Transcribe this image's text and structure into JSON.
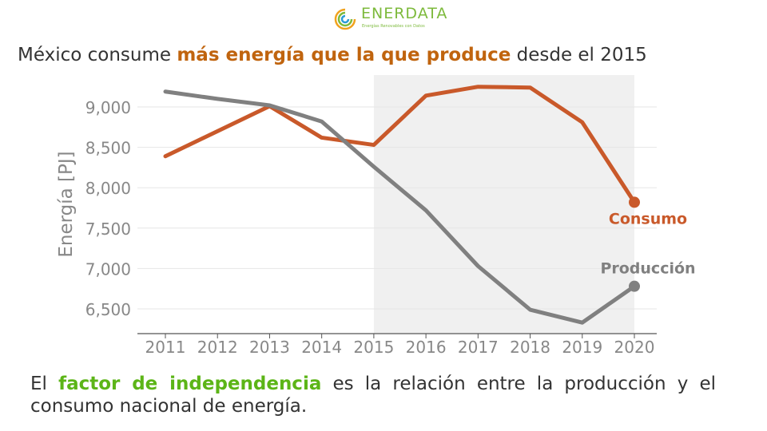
{
  "logo": {
    "name": "ENERDATA",
    "tagline": "Energías Renovables con Datos",
    "colors": [
      "#f0a21d",
      "#7dba3c",
      "#2a9bd6"
    ]
  },
  "title": {
    "before": "México consume ",
    "highlight": "más energía que la que produce",
    "after": " desde el 2015",
    "highlight_color": "#c0640e"
  },
  "footer": {
    "before": "El ",
    "highlight": "factor de independencia",
    "after": " es la relación entre la producción y el consumo nacional de energía.",
    "highlight_color": "#5cb517"
  },
  "chart_data": {
    "type": "line",
    "title": "",
    "xlabel": "",
    "ylabel": "Energía [PJ]",
    "x": [
      2011,
      2012,
      2013,
      2014,
      2015,
      2016,
      2017,
      2018,
      2019,
      2020
    ],
    "xlim": [
      2011,
      2020
    ],
    "ylim": [
      6200,
      9400
    ],
    "yticks": [
      6500,
      7000,
      7500,
      8000,
      8500,
      9000
    ],
    "ytick_labels": [
      "6,500",
      "7,000",
      "7,500",
      "8,000",
      "8,500",
      "9,000"
    ],
    "xtick_labels": [
      "2011",
      "2012",
      "2013",
      "2014",
      "2015",
      "2016",
      "2017",
      "2018",
      "2019",
      "2020"
    ],
    "grid": "horizontal",
    "shaded_region": [
      2015,
      2020
    ],
    "series": [
      {
        "name": "Consumo",
        "color": "#c9592a",
        "values": [
          8390,
          8700,
          9010,
          8620,
          8530,
          9140,
          9250,
          9240,
          8810,
          7820
        ]
      },
      {
        "name": "Producción",
        "color": "#808080",
        "values": [
          9190,
          9100,
          9020,
          8820,
          8260,
          7720,
          7030,
          6490,
          6330,
          6780
        ]
      }
    ]
  }
}
